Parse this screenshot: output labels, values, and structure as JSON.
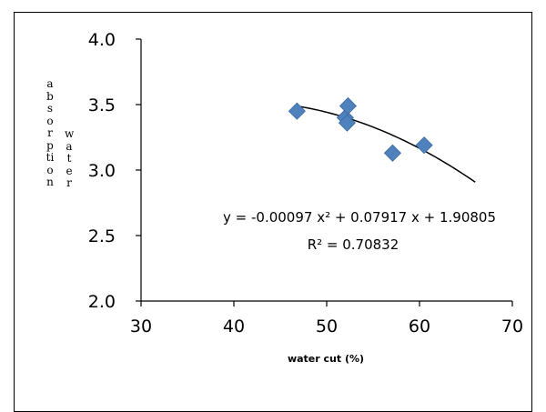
{
  "chart_data": {
    "type": "scatter",
    "title": "",
    "xlabel": "water cut (%)",
    "ylabel_line1": "absorption",
    "ylabel_line2": "water",
    "xlim": [
      30,
      70
    ],
    "ylim": [
      2.0,
      4.0
    ],
    "x_ticks": [
      "30",
      "40",
      "50",
      "60",
      "70"
    ],
    "y_ticks": [
      "2.0",
      "2.5",
      "3.0",
      "3.5",
      "4.0"
    ],
    "grid": false,
    "legend": "none",
    "series": [
      {
        "marker": "diamond",
        "color": "#4F81BD",
        "points": [
          {
            "x": 46.8,
            "y": 3.45
          },
          {
            "x": 52.0,
            "y": 3.4
          },
          {
            "x": 52.2,
            "y": 3.36
          },
          {
            "x": 52.3,
            "y": 3.49
          },
          {
            "x": 57.1,
            "y": 3.13
          },
          {
            "x": 60.5,
            "y": 3.19
          }
        ]
      }
    ],
    "trendline": {
      "type": "polynomial",
      "order": 2,
      "coefficients": {
        "a": -0.00097,
        "b": 0.07917,
        "c": 1.90805
      },
      "x_range": [
        46.8,
        66.0
      ],
      "color": "#000000",
      "equation": "y = -0.00097 x² + 0.07917 x + 1.90805",
      "r_squared": "R² = 0.70832"
    }
  }
}
